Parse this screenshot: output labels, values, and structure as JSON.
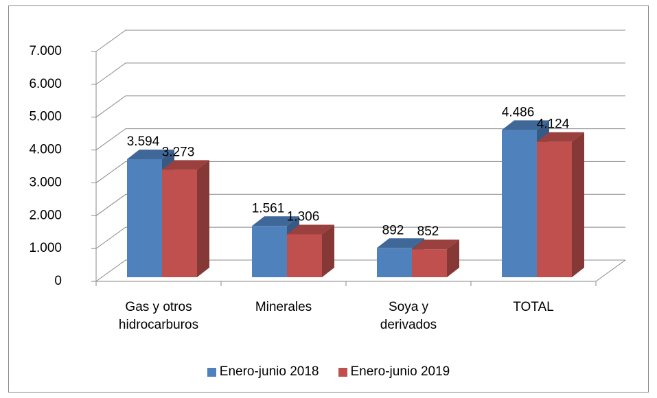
{
  "chart_data": {
    "type": "bar3d",
    "categories": [
      "Gas y otros hidrocarburos",
      "Minerales",
      "Soya y derivados",
      "TOTAL"
    ],
    "series": [
      {
        "name": "Enero-junio 2018",
        "color": "#4f81bd",
        "values": [
          3594,
          1561,
          892,
          4486
        ],
        "value_labels": [
          "3.594",
          "1.561",
          "892",
          "4.486"
        ]
      },
      {
        "name": "Enero-junio 2019",
        "color": "#c0504d",
        "values": [
          3273,
          1306,
          852,
          4124
        ],
        "value_labels": [
          "3.273",
          "1.306",
          "852",
          "4.124"
        ]
      }
    ],
    "ylim": [
      0,
      7000
    ],
    "yticks": [
      0,
      {
        "value": 1000,
        "label": "1.000"
      },
      {
        "value": 2000,
        "label": "2.000"
      },
      {
        "value": 3000,
        "label": "3.000"
      },
      {
        "value": 4000,
        "label": "4.000"
      },
      {
        "value": 5000,
        "label": "5.000"
      },
      {
        "value": 6000,
        "label": "6.000"
      },
      {
        "value": 7000,
        "label": "7.000"
      }
    ],
    "grid": true,
    "legend": "bottom"
  }
}
